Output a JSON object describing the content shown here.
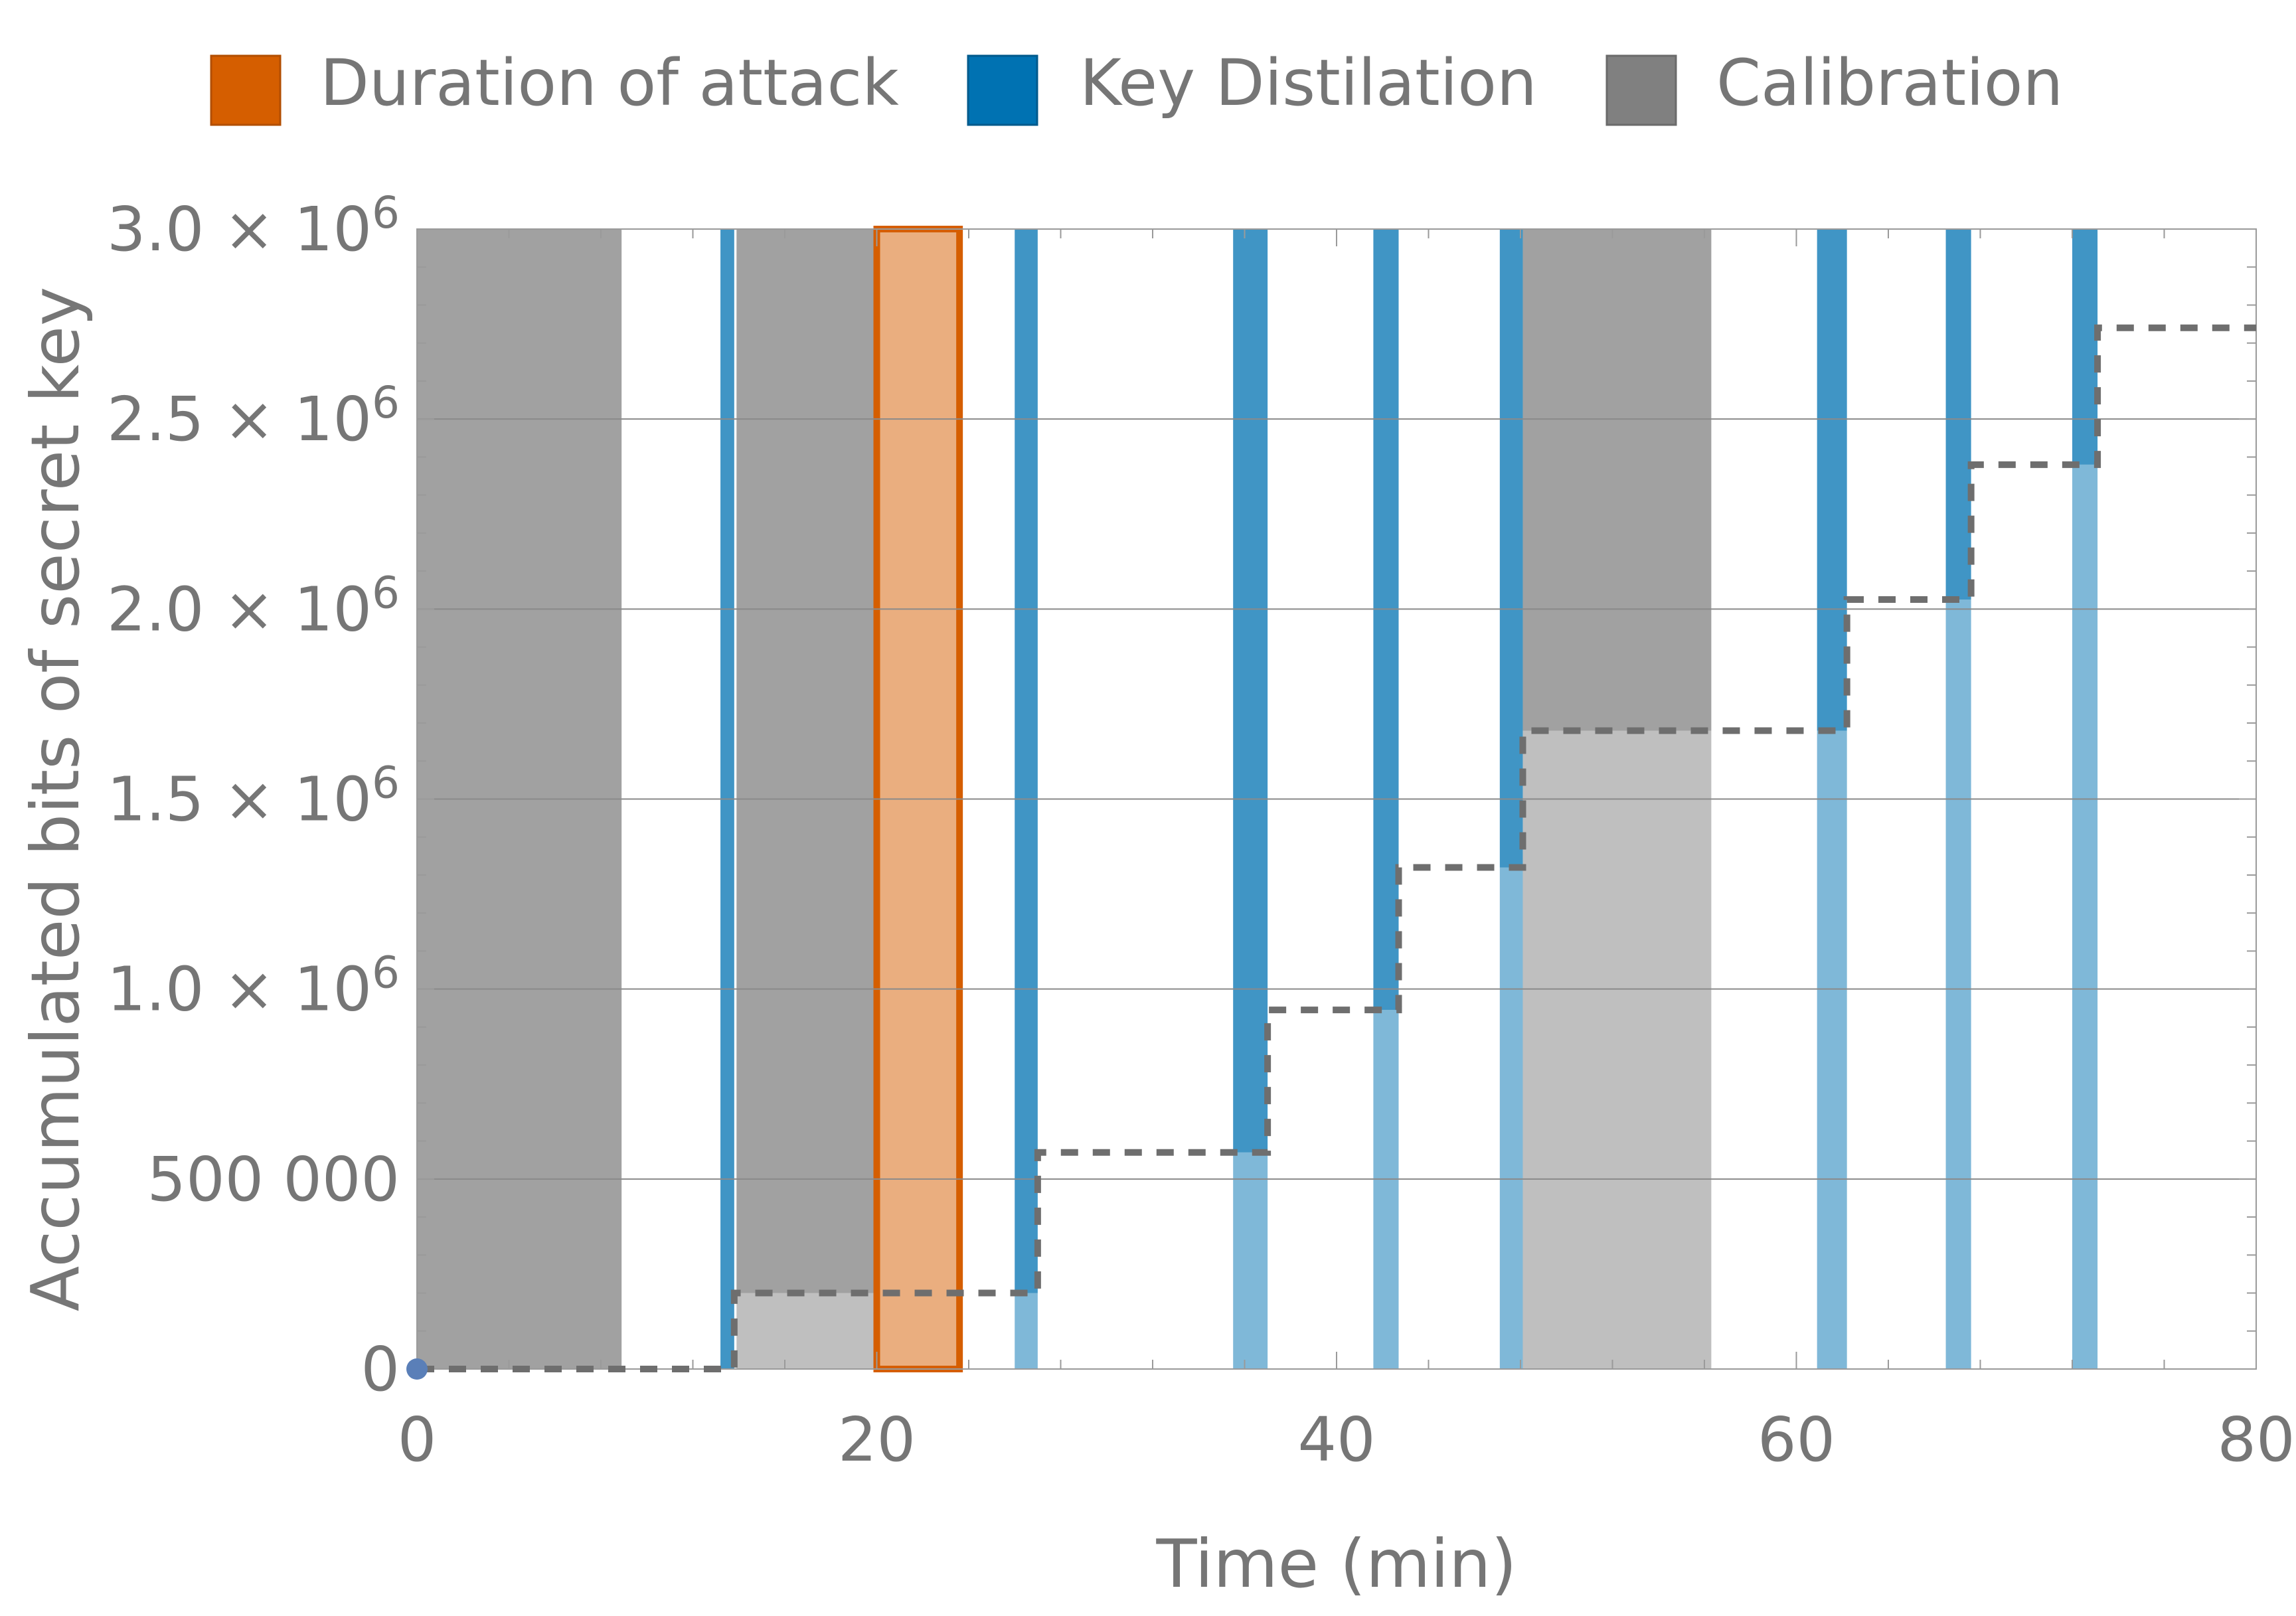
{
  "chart_data": {
    "type": "area",
    "xlabel": "Time (min)",
    "ylabel": "Accumulated bits of secret key",
    "xlim": [
      0,
      80
    ],
    "ylim": [
      0,
      3000000
    ],
    "x_ticks": [
      {
        "value": 0,
        "label": "0"
      },
      {
        "value": 20,
        "label": "20"
      },
      {
        "value": 40,
        "label": "40"
      },
      {
        "value": 60,
        "label": "60"
      },
      {
        "value": 80,
        "label": "80"
      }
    ],
    "y_ticks": [
      {
        "value": 0,
        "label": "0"
      },
      {
        "value": 500000,
        "label": "500 000"
      },
      {
        "value": 1000000,
        "label": "1.0 × 10",
        "exp": "6"
      },
      {
        "value": 1500000,
        "label": "1.5 × 10",
        "exp": "6"
      },
      {
        "value": 2000000,
        "label": "2.0 × 10",
        "exp": "6"
      },
      {
        "value": 2500000,
        "label": "2.5 × 10",
        "exp": "6"
      },
      {
        "value": 3000000,
        "label": "3.0 × 10",
        "exp": "6"
      }
    ],
    "grid": "horizontal",
    "legend_position": "top",
    "legend": [
      {
        "label": "Duration of attack",
        "color": "#D55E00"
      },
      {
        "label": "Key Distilation",
        "color": "#0072B2"
      },
      {
        "label": "Calibration",
        "color": "#808080"
      }
    ],
    "calibration_periods": [
      {
        "start": 0,
        "end": 8.9,
        "key_before": 0
      },
      {
        "start": 13.9,
        "end": 19.9,
        "key_before": 200000
      },
      {
        "start": 48.1,
        "end": 56.3,
        "key_before": 1680000
      }
    ],
    "attack_period": {
      "start": 20.0,
      "end": 23.6
    },
    "key_distillation_periods": [
      {
        "start": 13.2,
        "end": 13.8,
        "key_before": 0,
        "key_after": 200000
      },
      {
        "start": 26.0,
        "end": 27.0,
        "key_before": 200000,
        "key_after": 570000
      },
      {
        "start": 35.5,
        "end": 37.0,
        "key_before": 570000,
        "key_after": 945000
      },
      {
        "start": 41.6,
        "end": 42.7,
        "key_before": 945000,
        "key_after": 1320000
      },
      {
        "start": 47.1,
        "end": 48.1,
        "key_before": 1320000,
        "key_after": 1680000
      },
      {
        "start": 60.9,
        "end": 62.2,
        "key_before": 1680000,
        "key_after": 2025000
      },
      {
        "start": 66.5,
        "end": 67.6,
        "key_before": 2025000,
        "key_after": 2380000
      },
      {
        "start": 72.0,
        "end": 73.1,
        "key_before": 2380000,
        "key_after": 2740000
      }
    ],
    "accumulated_key_series": {
      "x": [
        0,
        13.8,
        13.8,
        27.0,
        27.0,
        37.0,
        37.0,
        42.7,
        42.7,
        48.1,
        48.1,
        62.2,
        62.2,
        67.6,
        67.6,
        73.1,
        73.1,
        80
      ],
      "y": [
        0,
        0,
        200000,
        200000,
        570000,
        570000,
        945000,
        945000,
        1320000,
        1320000,
        1680000,
        1680000,
        2025000,
        2025000,
        2380000,
        2380000,
        2740000,
        2740000
      ]
    },
    "start_point": {
      "x": 0,
      "y": 0
    }
  }
}
